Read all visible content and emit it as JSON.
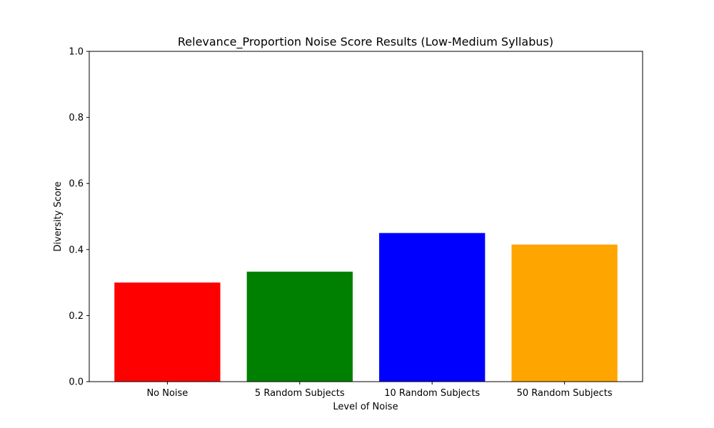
{
  "chart_data": {
    "type": "bar",
    "title": "Relevance_Proportion Noise Score Results (Low-Medium Syllabus)",
    "xlabel": "Level of Noise",
    "ylabel": "Diversity Score",
    "categories": [
      "No Noise",
      "5 Random Subjects",
      "10 Random Subjects",
      "50 Random Subjects"
    ],
    "values": [
      0.3,
      0.333,
      0.45,
      0.415
    ],
    "colors": [
      "#ff0000",
      "#008000",
      "#0000ff",
      "#ffa500"
    ],
    "ylim": [
      0,
      1
    ],
    "yticks": [
      "0.0",
      "0.2",
      "0.4",
      "0.6",
      "0.8",
      "1.0"
    ],
    "grid": false,
    "legend": "none"
  }
}
